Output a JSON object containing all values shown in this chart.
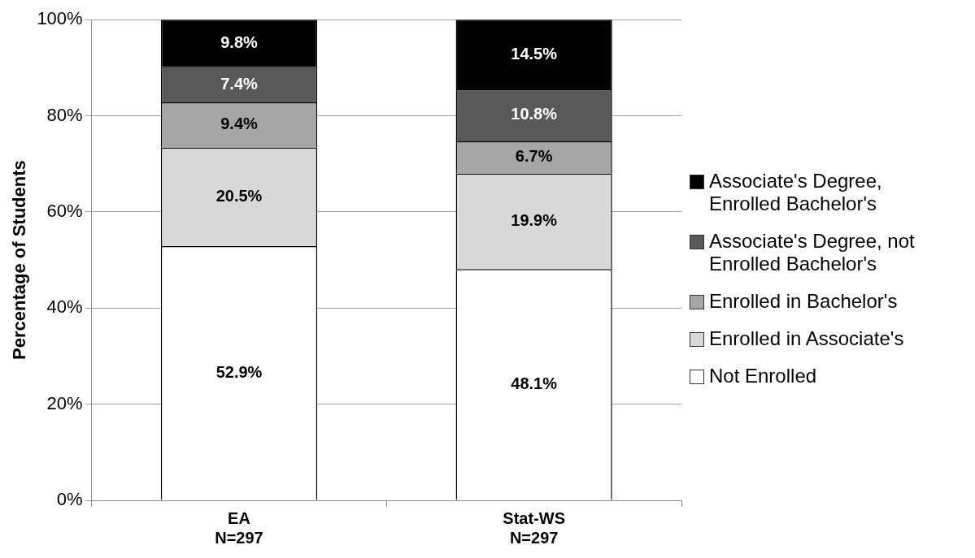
{
  "chart_data": {
    "type": "bar",
    "stacked": true,
    "ylabel": "Percentage of Students",
    "categories": [
      "EA\nN=297",
      "Stat-WS\nN=297"
    ],
    "series": [
      {
        "name": "Not Enrolled",
        "color": "#ffffff",
        "values": [
          52.9,
          48.1
        ],
        "value_labels": [
          "52.9%",
          "48.1%"
        ]
      },
      {
        "name": "Enrolled in Associate's",
        "color": "#d9d9d9",
        "values": [
          20.5,
          19.9
        ],
        "value_labels": [
          "20.5%",
          "19.9%"
        ]
      },
      {
        "name": "Enrolled in Bachelor's",
        "color": "#a6a6a6",
        "values": [
          9.4,
          6.7
        ],
        "value_labels": [
          "9.4%",
          "6.7%"
        ]
      },
      {
        "name": "Associate's Degree, not Enrolled Bachelor's",
        "color": "#595959",
        "values": [
          7.4,
          10.8
        ],
        "value_labels": [
          "7.4%",
          "10.8%"
        ]
      },
      {
        "name": "Associate's Degree, Enrolled Bachelor's",
        "color": "#000000",
        "values": [
          9.8,
          14.5
        ],
        "value_labels": [
          "9.8%",
          "14.5%"
        ]
      }
    ],
    "ylim": [
      0,
      100
    ],
    "yticks": [
      {
        "value": 0,
        "label": "0%"
      },
      {
        "value": 20,
        "label": "20%"
      },
      {
        "value": 40,
        "label": "40%"
      },
      {
        "value": 60,
        "label": "60%"
      },
      {
        "value": 80,
        "label": "80%"
      },
      {
        "value": 100,
        "label": "100%"
      }
    ],
    "grid": "y",
    "legend": "right"
  }
}
